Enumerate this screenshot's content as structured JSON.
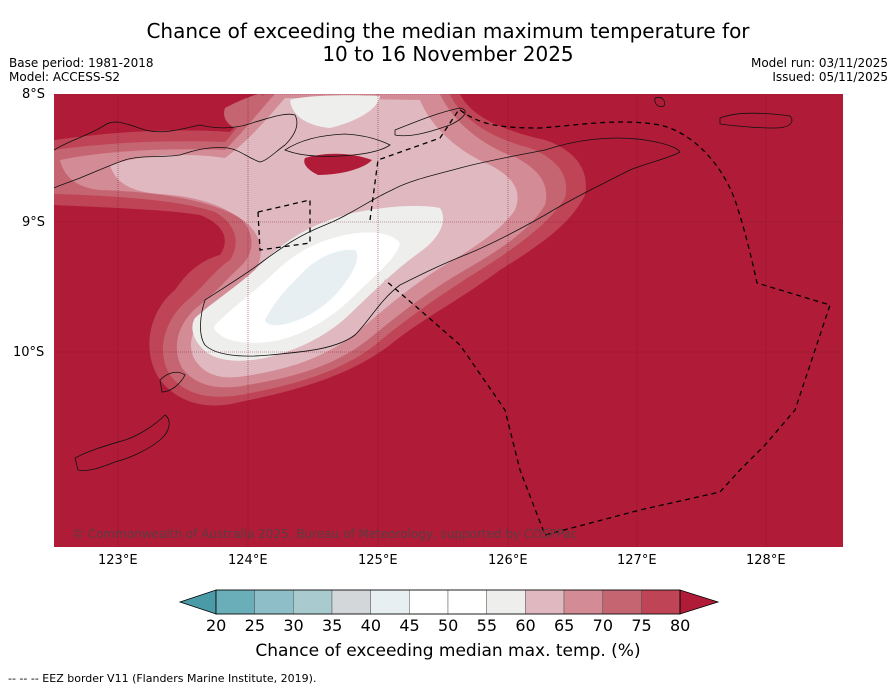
{
  "header": {
    "title_line1": "Chance of exceeding the median maximum temperature for",
    "title_line2": "10 to 16 November 2025",
    "base_period": "Base period: 1981-2018",
    "model": "Model: ACCESS-S2",
    "model_run": "Model run: 03/11/2025",
    "issued": "Issued: 05/11/2025"
  },
  "map": {
    "lat_labels": [
      "8°S",
      "9°S",
      "10°S"
    ],
    "lon_labels": [
      "123°E",
      "124°E",
      "125°E",
      "126°E",
      "127°E",
      "128°E"
    ],
    "copyright": "© Commonwealth of Australia 2025, Bureau of Meteorology, supported by COSPPac",
    "background_color": "#b01c37"
  },
  "colorbar": {
    "ticks": [
      "20",
      "25",
      "30",
      "35",
      "40",
      "45",
      "50",
      "55",
      "60",
      "65",
      "70",
      "75",
      "80"
    ],
    "colors": [
      "#4a9aa8",
      "#6aaeba",
      "#8ebfc8",
      "#a9cacf",
      "#d3d7d9",
      "#e8eff2",
      "#ffffff",
      "#ffffff",
      "#eeeeec",
      "#e0b9c0",
      "#d38b95",
      "#c66572",
      "#bf4455",
      "#b01c37"
    ],
    "title": "Chance of exceeding median max. temp. (%)"
  },
  "footnote": "--  --  -- EEZ border V11 (Flanders Marine Institute, 2019)."
}
